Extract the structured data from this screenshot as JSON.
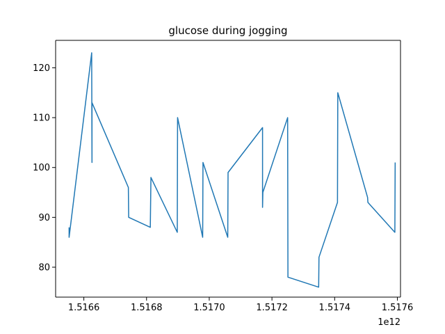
{
  "chart_data": {
    "type": "line",
    "title": "glucose during jogging",
    "xlabel": "",
    "ylabel": "",
    "x_offset_label": "1e12",
    "xlim": [
      1516510,
      1517610
    ],
    "ylim": [
      74,
      125.5
    ],
    "x_ticks": [
      1516600,
      1516800,
      1517000,
      1517200,
      1517400,
      1517600
    ],
    "x_tick_labels": [
      "1.5166",
      "1.5168",
      "1.5170",
      "1.5172",
      "1.5174",
      "1.5176"
    ],
    "y_ticks": [
      80,
      90,
      100,
      110,
      120
    ],
    "y_tick_labels": [
      "80",
      "90",
      "100",
      "110",
      "120"
    ],
    "grid": false,
    "series": [
      {
        "color": "#1f77b4",
        "x": [
          1516553,
          1516553,
          1516625,
          1516626,
          1516626,
          1516742,
          1516743,
          1516812,
          1516814,
          1516898,
          1516899,
          1516979,
          1516980,
          1517059,
          1517060,
          1517170,
          1517170,
          1517171,
          1517250,
          1517251,
          1517349,
          1517350,
          1517409,
          1517410,
          1517505,
          1517506,
          1517592,
          1517593
        ],
        "y": [
          88,
          86,
          123,
          101,
          113,
          96,
          90,
          88,
          98,
          87,
          110,
          86,
          101,
          86,
          99,
          108,
          92,
          95,
          110,
          78,
          76,
          82,
          93,
          115,
          94,
          93,
          87,
          101
        ]
      }
    ]
  }
}
